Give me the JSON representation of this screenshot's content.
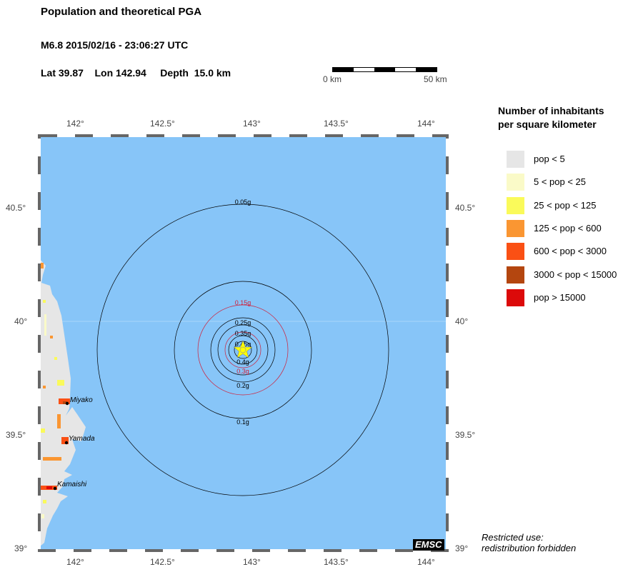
{
  "header": {
    "title": "Population and theoretical PGA",
    "event": "M6.8  2015/02/16 - 23:06:27 UTC",
    "location": "Lat 39.87    Lon 142.94     Depth  15.0 km"
  },
  "scale_bar": {
    "start_label": "0 km",
    "end_label": "50 km"
  },
  "map": {
    "lon_ticks": [
      "142°",
      "142.5°",
      "143°",
      "143.5°",
      "144°"
    ],
    "lat_ticks": [
      "40.5°",
      "40°",
      "39.5°",
      "39°"
    ],
    "epicenter": {
      "lat": 39.87,
      "lon": 142.94,
      "icon": "star-icon",
      "color": "#ffff00"
    },
    "sea_color": "#87c5f8",
    "contours": [
      {
        "label": "0.05g",
        "color": "#000000"
      },
      {
        "label": "0.1g",
        "color": "#000000"
      },
      {
        "label": "0.15g",
        "color": "#d0203a"
      },
      {
        "label": "0.2g",
        "color": "#000000"
      },
      {
        "label": "0.25g",
        "color": "#000000"
      },
      {
        "label": "0.3g",
        "color": "#d0203a"
      },
      {
        "label": "0.35g",
        "color": "#000000"
      },
      {
        "label": "0.4g",
        "color": "#000000"
      },
      {
        "label": "0.45g",
        "color": "#000000"
      }
    ],
    "cities": [
      {
        "name": "Miyako"
      },
      {
        "name": "Yamada"
      },
      {
        "name": "Kamaishi"
      }
    ],
    "logo": "EMSC"
  },
  "legend": {
    "title_line1": "Number of inhabitants",
    "title_line2": "per square kilometer",
    "items": [
      {
        "label": "pop < 5",
        "color": "#e6e6e6"
      },
      {
        "label": "5 < pop < 25",
        "color": "#fafac8"
      },
      {
        "label": "25 < pop < 125",
        "color": "#fafa5a"
      },
      {
        "label": "125 < pop < 600",
        "color": "#fa9632"
      },
      {
        "label": "600 < pop < 3000",
        "color": "#fa5014"
      },
      {
        "label": "3000 < pop < 15000",
        "color": "#b4460f"
      },
      {
        "label": "pop > 15000",
        "color": "#dc0a0a"
      }
    ]
  },
  "note": {
    "line1": "Restricted use:",
    "line2": "redistribution forbidden"
  }
}
